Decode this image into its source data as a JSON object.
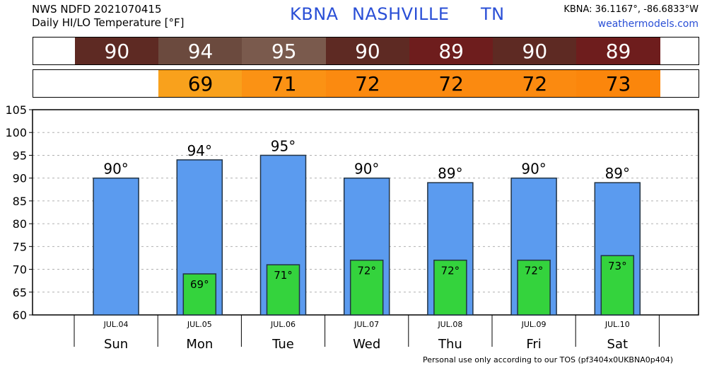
{
  "header": {
    "line1": "NWS NDFD 2021070415",
    "line2": "Daily HI/LO Temperature [°F]",
    "station": "KBNA",
    "city": "NASHVILLE",
    "state": "TN",
    "coords": "KBNA: 36.1167°, -86.6833°W",
    "site": "weathermodels.com"
  },
  "hi_strip": [
    {
      "value": "90",
      "color": "#5e2a23"
    },
    {
      "value": "94",
      "color": "#6b4a3e"
    },
    {
      "value": "95",
      "color": "#7a5a4d"
    },
    {
      "value": "90",
      "color": "#5e2a23"
    },
    {
      "value": "89",
      "color": "#6e1d1d"
    },
    {
      "value": "90",
      "color": "#5e2a23"
    },
    {
      "value": "89",
      "color": "#6e1d1d"
    }
  ],
  "lo_strip": [
    {
      "value": "",
      "color": ""
    },
    {
      "value": "69",
      "color": "#f9a11c"
    },
    {
      "value": "71",
      "color": "#fb9214"
    },
    {
      "value": "72",
      "color": "#fb8a10"
    },
    {
      "value": "72",
      "color": "#fb8a10"
    },
    {
      "value": "72",
      "color": "#fb8a10"
    },
    {
      "value": "73",
      "color": "#fb860c"
    }
  ],
  "chart_data": {
    "type": "bar",
    "categories": [
      "Sun",
      "Mon",
      "Tue",
      "Wed",
      "Thu",
      "Fri",
      "Sat"
    ],
    "dates": [
      "JUL.04",
      "JUL.05",
      "JUL.06",
      "JUL.07",
      "JUL.08",
      "JUL.09",
      "JUL.10"
    ],
    "series": [
      {
        "values": [
          90,
          94,
          95,
          90,
          89,
          90,
          89
        ],
        "labels": [
          "90°",
          "94°",
          "95°",
          "90°",
          "89°",
          "90°",
          "89°"
        ],
        "color": "#5b9bef"
      },
      {
        "values": [
          null,
          69,
          71,
          72,
          72,
          72,
          73
        ],
        "labels": [
          "",
          "69°",
          "71°",
          "72°",
          "72°",
          "72°",
          "73°"
        ],
        "color": "#34d33d"
      }
    ],
    "ylim": [
      60,
      105
    ],
    "yticks": [
      "60",
      "65",
      "70",
      "75",
      "80",
      "85",
      "90",
      "95",
      "100",
      "105"
    ],
    "grid": true
  },
  "footer": "Personal use only according to our TOS (pf3404x0UKBNA0p404)"
}
